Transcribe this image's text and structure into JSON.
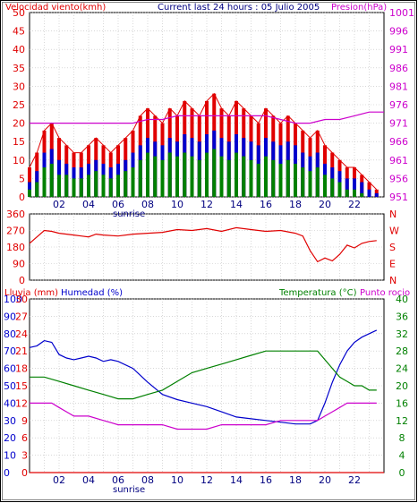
{
  "header": {
    "wind_label": "Velocidad viento(kmh)",
    "title": "Current last 24 hours : 05 Julio 2005",
    "pressure_label": "Presion(hPa)"
  },
  "colors": {
    "wind": "#e00000",
    "wind_gust": "#e00000",
    "wind_avg": "#0000cc",
    "wind_min": "#008000",
    "pressure": "#cc00cc",
    "direction": "#e00000",
    "humidity": "#0000cc",
    "temperature": "#008000",
    "dewpoint": "#cc00cc",
    "rain": "#e00000",
    "grid": "#c0c0c0",
    "frame": "#000000"
  },
  "chart_data": [
    {
      "type": "line",
      "name": "wind-pressure",
      "x_ticks": [
        "02",
        "04",
        "06",
        "08",
        "10",
        "12",
        "14",
        "16",
        "18",
        "20",
        "22"
      ],
      "x_extra_label": "sunrise",
      "x_range": [
        0,
        24
      ],
      "left_axis": {
        "label": "Velocidad viento(kmh)",
        "ticks": [
          0,
          5,
          10,
          15,
          20,
          25,
          30,
          35,
          40,
          45,
          50
        ],
        "range": [
          0,
          50
        ]
      },
      "right_axis": {
        "label": "Presion(hPa)",
        "ticks": [
          951,
          956,
          961,
          966,
          971,
          976,
          981,
          986,
          991,
          996,
          1001
        ],
        "range": [
          951,
          1001
        ]
      },
      "series": [
        {
          "key": "gust",
          "x": [
            0,
            0.5,
            1,
            1.5,
            2,
            2.5,
            3,
            3.5,
            4,
            4.5,
            5,
            5.5,
            6,
            6.5,
            7,
            7.5,
            8,
            8.5,
            9,
            9.5,
            10,
            10.5,
            11,
            11.5,
            12,
            12.5,
            13,
            13.5,
            14,
            14.5,
            15,
            15.5,
            16,
            16.5,
            17,
            17.5,
            18,
            18.5,
            19,
            19.5,
            20,
            20.5,
            21,
            21.5,
            22,
            22.5,
            23,
            23.5
          ],
          "values": [
            8,
            12,
            18,
            20,
            16,
            14,
            12,
            12,
            14,
            16,
            14,
            12,
            14,
            16,
            18,
            22,
            24,
            22,
            20,
            24,
            22,
            26,
            24,
            22,
            26,
            28,
            24,
            22,
            26,
            24,
            22,
            20,
            24,
            22,
            20,
            22,
            20,
            18,
            16,
            18,
            14,
            12,
            10,
            8,
            8,
            6,
            4,
            2
          ]
        },
        {
          "key": "avg",
          "x": [
            0,
            0.5,
            1,
            1.5,
            2,
            2.5,
            3,
            3.5,
            4,
            4.5,
            5,
            5.5,
            6,
            6.5,
            7,
            7.5,
            8,
            8.5,
            9,
            9.5,
            10,
            10.5,
            11,
            11.5,
            12,
            12.5,
            13,
            13.5,
            14,
            14.5,
            15,
            15.5,
            16,
            16.5,
            17,
            17.5,
            18,
            18.5,
            19,
            19.5,
            20,
            20.5,
            21,
            21.5,
            22,
            22.5,
            23,
            23.5
          ],
          "values": [
            4,
            7,
            12,
            13,
            10,
            9,
            8,
            8,
            9,
            10,
            9,
            8,
            9,
            10,
            12,
            14,
            16,
            15,
            14,
            16,
            15,
            17,
            16,
            15,
            17,
            18,
            16,
            15,
            17,
            16,
            15,
            14,
            16,
            15,
            14,
            15,
            14,
            12,
            11,
            12,
            9,
            8,
            7,
            5,
            5,
            4,
            2,
            1
          ]
        },
        {
          "key": "min",
          "x": [
            0,
            0.5,
            1,
            1.5,
            2,
            2.5,
            3,
            3.5,
            4,
            4.5,
            5,
            5.5,
            6,
            6.5,
            7,
            7.5,
            8,
            8.5,
            9,
            9.5,
            10,
            10.5,
            11,
            11.5,
            12,
            12.5,
            13,
            13.5,
            14,
            14.5,
            15,
            15.5,
            16,
            16.5,
            17,
            17.5,
            18,
            18.5,
            19,
            19.5,
            20,
            20.5,
            21,
            21.5,
            22,
            22.5,
            23,
            23.5
          ],
          "values": [
            2,
            4,
            8,
            9,
            6,
            6,
            5,
            5,
            6,
            7,
            6,
            5,
            6,
            7,
            8,
            10,
            12,
            11,
            10,
            12,
            11,
            12,
            11,
            10,
            12,
            13,
            11,
            10,
            12,
            11,
            10,
            9,
            11,
            10,
            9,
            10,
            9,
            8,
            7,
            8,
            6,
            5,
            4,
            2,
            2,
            1,
            0,
            0
          ]
        },
        {
          "key": "pressure",
          "x": [
            0,
            4,
            5,
            6,
            7,
            8,
            9,
            10,
            12,
            14,
            16,
            17,
            18,
            19,
            20,
            21,
            22,
            23,
            24
          ],
          "values": [
            971,
            971,
            971,
            971,
            971,
            972,
            972,
            973,
            973,
            973,
            973,
            972,
            971,
            971,
            972,
            972,
            973,
            974,
            974
          ]
        }
      ]
    },
    {
      "type": "line",
      "name": "wind-direction",
      "x_range": [
        0,
        24
      ],
      "left_axis": {
        "ticks": [
          0,
          90,
          180,
          270,
          360
        ],
        "range": [
          0,
          360
        ]
      },
      "right_axis": {
        "labels": [
          "N",
          "W",
          "S",
          "E",
          "N"
        ]
      },
      "series": [
        {
          "key": "direction",
          "x": [
            0,
            0.5,
            1,
            1.5,
            2,
            2.5,
            3,
            3.5,
            4,
            4.5,
            5,
            6,
            7,
            8,
            9,
            10,
            11,
            12,
            13,
            14,
            15,
            16,
            17,
            18,
            18.5,
            19,
            19.5,
            20,
            20.5,
            21,
            21.5,
            22,
            22.5,
            23,
            23.5
          ],
          "values": [
            200,
            235,
            270,
            265,
            255,
            250,
            245,
            240,
            235,
            250,
            245,
            240,
            250,
            255,
            260,
            275,
            270,
            280,
            265,
            285,
            275,
            265,
            270,
            255,
            240,
            160,
            100,
            120,
            105,
            140,
            190,
            175,
            200,
            210,
            215
          ]
        }
      ]
    },
    {
      "type": "line",
      "name": "humidity-temperature",
      "x_ticks": [
        "02",
        "04",
        "06",
        "08",
        "10",
        "12",
        "14",
        "16",
        "18",
        "20",
        "22"
      ],
      "x_extra_label": "sunrise",
      "labels": {
        "rain": "Lluvia (mm)",
        "humidity": "Humedad (%)",
        "temperature": "Temperatura (°C)",
        "dewpoint": "Punto rocio"
      },
      "rain_axis": {
        "ticks": [
          0,
          3,
          6,
          9,
          12,
          15,
          18,
          21,
          24,
          27,
          30
        ],
        "range": [
          0,
          30
        ]
      },
      "humidity_axis": {
        "ticks": [
          0,
          10,
          20,
          30,
          40,
          50,
          60,
          70,
          80,
          90,
          100
        ],
        "range": [
          0,
          100
        ]
      },
      "temp_axis": {
        "ticks": [
          0,
          4,
          8,
          12,
          16,
          20,
          24,
          28,
          32,
          36,
          40
        ],
        "range": [
          0,
          40
        ]
      },
      "series": [
        {
          "key": "humidity",
          "x": [
            0,
            0.5,
            1,
            1.5,
            2,
            2.5,
            3,
            3.5,
            4,
            4.5,
            5,
            5.5,
            6,
            7,
            8,
            9,
            10,
            11,
            12,
            13,
            14,
            15,
            16,
            17,
            18,
            18.5,
            19,
            19.5,
            20,
            20.5,
            21,
            21.5,
            22,
            22.5,
            23,
            23.5
          ],
          "values": [
            72,
            73,
            76,
            75,
            68,
            66,
            65,
            66,
            67,
            66,
            64,
            65,
            64,
            60,
            52,
            45,
            42,
            40,
            38,
            35,
            32,
            31,
            30,
            29,
            28,
            28,
            28,
            30,
            40,
            52,
            62,
            70,
            75,
            78,
            80,
            82
          ]
        },
        {
          "key": "temperature",
          "x": [
            0,
            1,
            2,
            3,
            4,
            5,
            6,
            7,
            8,
            9,
            10,
            11,
            12,
            13,
            14,
            15,
            16,
            17,
            18,
            18.5,
            19,
            19.5,
            20,
            20.5,
            21,
            21.5,
            22,
            22.5,
            23,
            23.5
          ],
          "values": [
            22,
            22,
            21,
            20,
            19,
            18,
            17,
            17,
            18,
            19,
            21,
            23,
            24,
            25,
            26,
            27,
            28,
            28,
            28,
            28,
            28,
            28,
            26,
            24,
            22,
            21,
            20,
            20,
            19,
            19
          ]
        },
        {
          "key": "dewpoint",
          "x": [
            0,
            0.5,
            1,
            1.5,
            2,
            2.5,
            3,
            4,
            5,
            6,
            7,
            8,
            9,
            10,
            11,
            12,
            13,
            14,
            15,
            16,
            17,
            18,
            18.5,
            19,
            19.5,
            20,
            20.5,
            21,
            21.5,
            22,
            22.5,
            23,
            23.5
          ],
          "values": [
            16,
            16,
            16,
            16,
            15,
            14,
            13,
            13,
            12,
            11,
            11,
            11,
            11,
            10,
            10,
            10,
            11,
            11,
            11,
            11,
            12,
            12,
            12,
            12,
            12,
            13,
            14,
            15,
            16,
            16,
            16,
            16,
            16
          ]
        },
        {
          "key": "rain",
          "x": [
            0,
            24
          ],
          "values": [
            0,
            0
          ]
        }
      ]
    }
  ]
}
